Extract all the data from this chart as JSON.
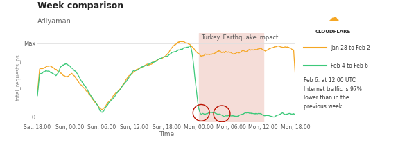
{
  "title": "Week comparison",
  "subtitle": "Adiyaman",
  "xlabel": "Time",
  "ylabel": "total_requests_ps",
  "y_max_label": "Max",
  "color_orange": "#F5A623",
  "color_green": "#3DC97A",
  "legend_orange": "Jan 28 to Feb 2",
  "legend_green": "Feb 4 to Feb 6",
  "annotation_text": "Feb 6: at 12:00 UTC\nInternet traffic is 97%\nlower than in the\nprevious week",
  "earthquake_label": "Turkey. Earthquake impact",
  "bg_color": "#ffffff",
  "grid_color": "#e0e0e0",
  "shade_color": "#f5ddd8",
  "xtick_labels": [
    "Sat, 18:00",
    "Sun, 00:00",
    "Sun, 06:00",
    "Sun, 12:00",
    "Sun, 18:00",
    "Mon, 00:00",
    "Mon, 06:00",
    "Mon, 12:00",
    "Mon, 18:00"
  ],
  "title_fontsize": 9,
  "subtitle_fontsize": 7,
  "tick_fontsize": 5.5,
  "ylabel_fontsize": 5.5,
  "xlabel_fontsize": 6.5
}
